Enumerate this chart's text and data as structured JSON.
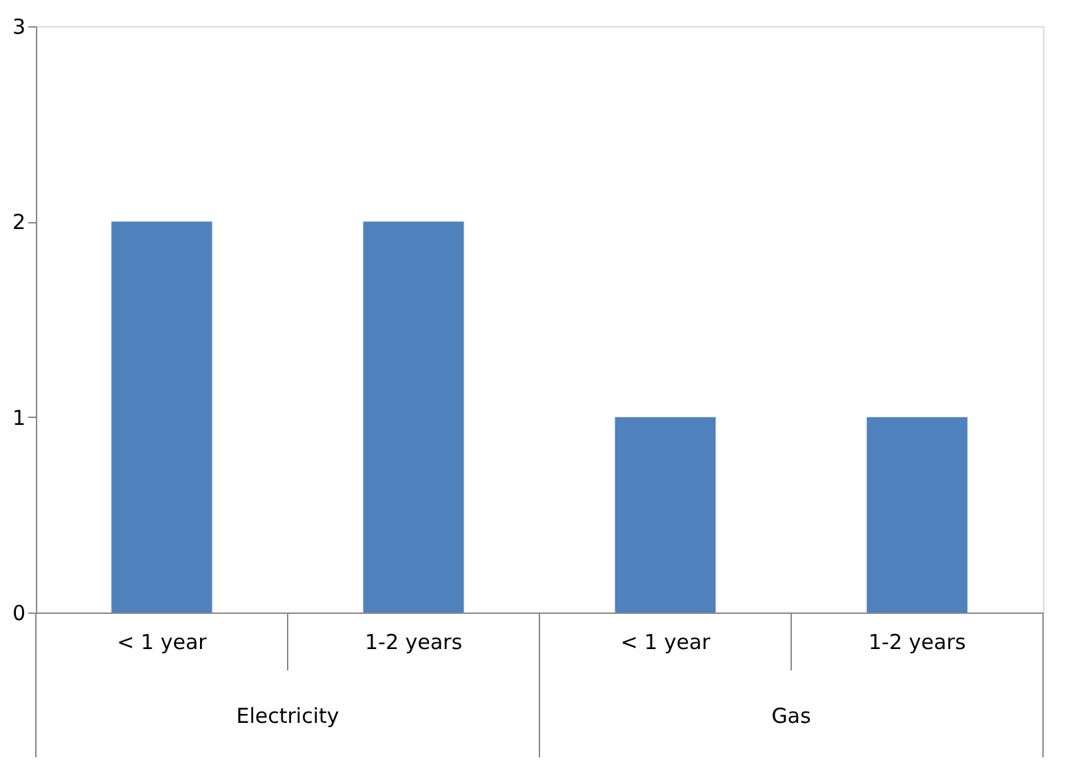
{
  "chart_data": {
    "type": "bar",
    "categories": [
      "< 1 year",
      "1-2 years",
      "< 1 year",
      "1-2 years"
    ],
    "values": [
      2,
      2,
      1,
      1
    ],
    "color": "#4f81bd",
    "ylim": [
      0,
      3
    ],
    "yticks": [
      0,
      1,
      2,
      3
    ],
    "grid": false,
    "annotations": [
      "Electricity",
      "Gas"
    ]
  }
}
